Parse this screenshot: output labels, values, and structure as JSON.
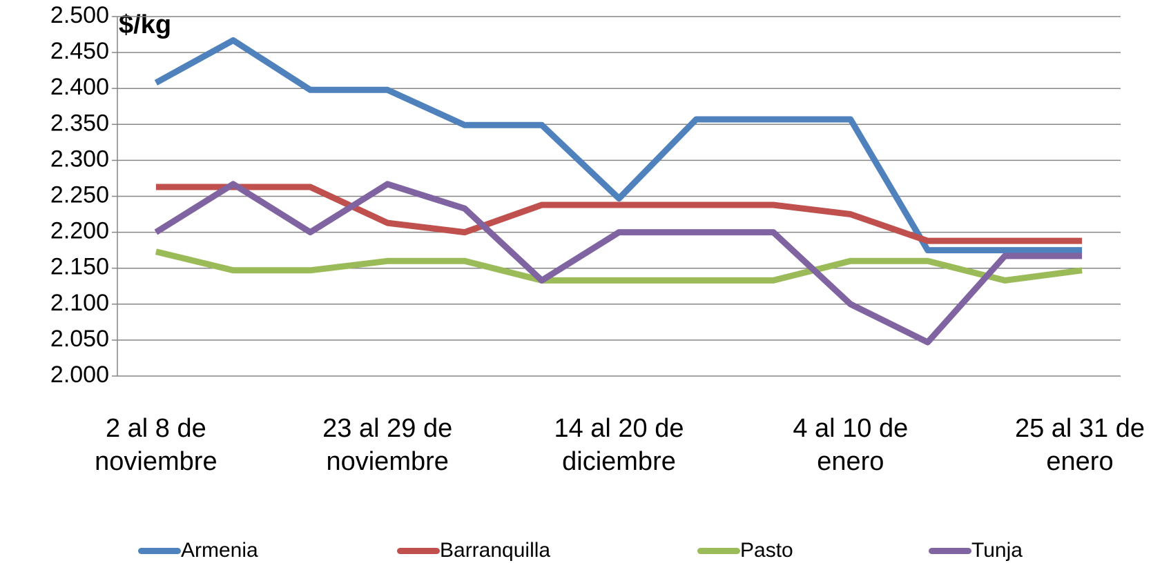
{
  "chart_data": {
    "type": "line",
    "y_label": "$/kg",
    "categories": [
      "2 al 8 de noviembre",
      null,
      null,
      "23 al 29 de noviembre",
      null,
      null,
      "14 al 20 de diciembre",
      null,
      null,
      "4 al 10 de enero",
      null,
      null,
      "25 al 31 de enero"
    ],
    "series": [
      {
        "name": "Armenia",
        "color": "#4f81bd",
        "values": [
          2408,
          2467,
          2398,
          2398,
          2349,
          2349,
          2247,
          2357,
          2357,
          2357,
          2175,
          2175,
          2175
        ]
      },
      {
        "name": "Barranquilla",
        "color": "#c0504d",
        "values": [
          2263,
          2263,
          2263,
          2213,
          2200,
          2238,
          2238,
          2238,
          2238,
          2225,
          2188,
          2188,
          2188
        ]
      },
      {
        "name": "Pasto",
        "color": "#9bbb59",
        "values": [
          2173,
          2147,
          2147,
          2160,
          2160,
          2133,
          2133,
          2133,
          2133,
          2160,
          2160,
          2133,
          2147
        ]
      },
      {
        "name": "Tunja",
        "color": "#8064a2",
        "values": [
          2200,
          2267,
          2200,
          2267,
          2233,
          2133,
          2200,
          2200,
          2200,
          2100,
          2047,
          2167,
          2167
        ]
      }
    ],
    "ylim": [
      2000,
      2500
    ],
    "yticks": [
      {
        "value": 2000,
        "label": "2.000"
      },
      {
        "value": 2050,
        "label": "2.050"
      },
      {
        "value": 2100,
        "label": "2.100"
      },
      {
        "value": 2150,
        "label": "2.150"
      },
      {
        "value": 2200,
        "label": "2.200"
      },
      {
        "value": 2250,
        "label": "2.250"
      },
      {
        "value": 2300,
        "label": "2.300"
      },
      {
        "value": 2350,
        "label": "2.350"
      },
      {
        "value": 2400,
        "label": "2.400"
      },
      {
        "value": 2450,
        "label": "2.450"
      },
      {
        "value": 2500,
        "label": "2.500"
      }
    ],
    "grid": true,
    "legend": "bottom"
  }
}
